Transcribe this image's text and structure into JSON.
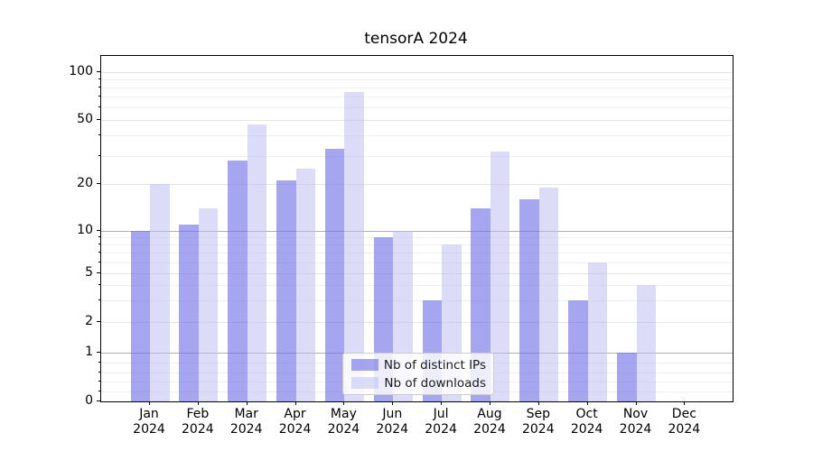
{
  "figure": {
    "background": "#ffffff"
  },
  "chart_data": {
    "type": "bar",
    "title": "tensorA 2024",
    "categories": [
      "Jan 2024",
      "Feb 2024",
      "Mar 2024",
      "Apr 2024",
      "May 2024",
      "Jun 2024",
      "Jul 2024",
      "Aug 2024",
      "Sep 2024",
      "Oct 2024",
      "Nov 2024",
      "Dec 2024"
    ],
    "categories_lines": [
      {
        "month": "Jan",
        "year": "2024"
      },
      {
        "month": "Feb",
        "year": "2024"
      },
      {
        "month": "Mar",
        "year": "2024"
      },
      {
        "month": "Apr",
        "year": "2024"
      },
      {
        "month": "May",
        "year": "2024"
      },
      {
        "month": "Jun",
        "year": "2024"
      },
      {
        "month": "Jul",
        "year": "2024"
      },
      {
        "month": "Aug",
        "year": "2024"
      },
      {
        "month": "Sep",
        "year": "2024"
      },
      {
        "month": "Oct",
        "year": "2024"
      },
      {
        "month": "Nov",
        "year": "2024"
      },
      {
        "month": "Dec",
        "year": "2024"
      }
    ],
    "series": [
      {
        "name": "Nb of distinct IPs",
        "values": [
          10,
          11,
          28,
          21,
          33,
          9,
          3,
          14,
          16,
          3,
          1,
          0
        ]
      },
      {
        "name": "Nb of downloads",
        "values": [
          20,
          14,
          47,
          25,
          75,
          10,
          8,
          32,
          19,
          6,
          4,
          0
        ]
      }
    ],
    "yscale": "symlog-like (linear 0-1, log above)",
    "y_ticks": [
      "0",
      "1",
      "2",
      "5",
      "10",
      "20",
      "50",
      "100"
    ],
    "y_minor_ticks": [
      0.2,
      0.4,
      0.6,
      0.8,
      3,
      4,
      6,
      7,
      8,
      9,
      30,
      40,
      60,
      70,
      80,
      90
    ],
    "ylim": [
      0,
      126
    ],
    "grid": "on",
    "legend_position": "lower center"
  },
  "legend": {
    "items": [
      {
        "label": "Nb of distinct IPs",
        "color": "rgba(110,110,230,0.62)"
      },
      {
        "label": "Nb of downloads",
        "color": "rgba(185,185,241,0.5)"
      }
    ]
  },
  "colors": {
    "ips_bar": "rgba(110,110,230,0.62)",
    "downloads_bar": "rgba(185,185,241,0.5)",
    "grid_major_dark": "#b0b0b0",
    "grid_major_light": "#e4e4e4",
    "grid_minor": "#f0f0f0",
    "spine": "#000000"
  }
}
